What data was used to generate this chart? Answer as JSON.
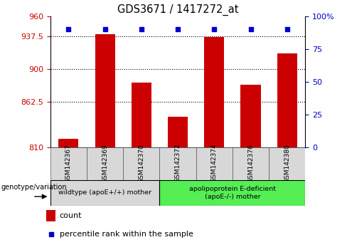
{
  "title": "GDS3671 / 1417272_at",
  "categories": [
    "GSM142367",
    "GSM142369",
    "GSM142370",
    "GSM142372",
    "GSM142374",
    "GSM142376",
    "GSM142380"
  ],
  "bar_values": [
    820,
    940,
    884,
    845,
    936,
    882,
    918
  ],
  "percentile_values": [
    90,
    90,
    90,
    90,
    90,
    90,
    90
  ],
  "bar_color": "#cc0000",
  "percentile_color": "#0000cc",
  "ylim_left": [
    810,
    960
  ],
  "ylim_right": [
    0,
    100
  ],
  "yticks_left": [
    810,
    862.5,
    900,
    937.5,
    960
  ],
  "ytick_labels_left": [
    "810",
    "862.5",
    "900",
    "937.5",
    "960"
  ],
  "yticks_right": [
    0,
    25,
    50,
    75,
    100
  ],
  "ytick_labels_right": [
    "0",
    "25",
    "50",
    "75",
    "100%"
  ],
  "group1_label": "wildtype (apoE+/+) mother",
  "group2_label": "apolipoprotein E-deficient\n(apoE-/-) mother",
  "group1_indices": [
    0,
    1,
    2
  ],
  "group2_indices": [
    3,
    4,
    5,
    6
  ],
  "group1_color": "#d8d8d8",
  "group2_color": "#55ee55",
  "legend_count_label": "count",
  "legend_percentile_label": "percentile rank within the sample",
  "genotype_label": "genotype/variation",
  "bar_width": 0.55
}
